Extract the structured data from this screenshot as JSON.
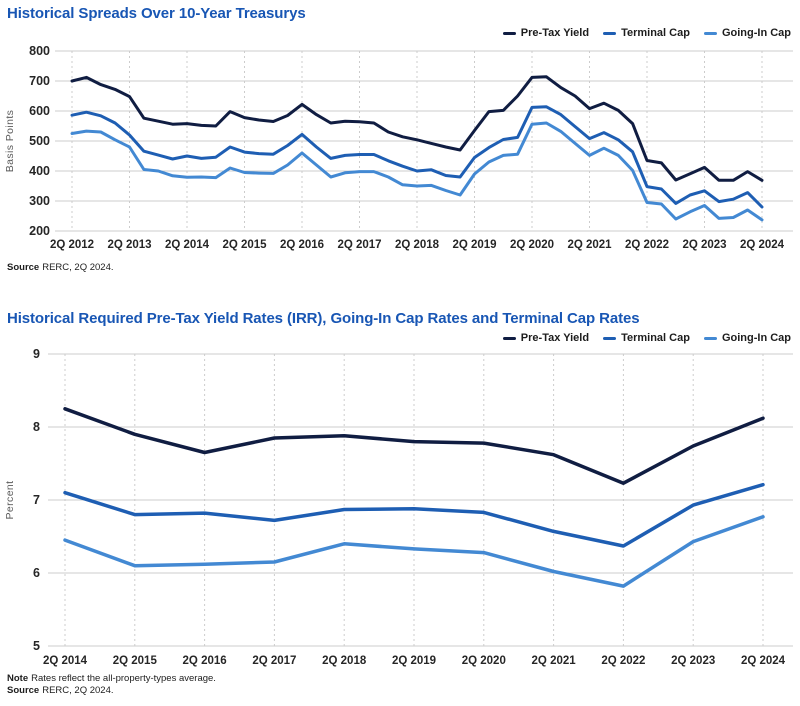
{
  "colors": {
    "title": "#1856b4",
    "grid": "#cccccc",
    "pre_tax": "#101d42",
    "terminal": "#1e5eb3",
    "going_in": "#4389d3"
  },
  "spreads_section": {
    "source_label": "Source",
    "source_text": "RERC, 2Q 2024."
  },
  "rates_section": {
    "note_label": "Note",
    "note_text": "Rates reflect the all-property-types average.",
    "source_label": "Source",
    "source_text": "RERC, 2Q 2024."
  },
  "chart_data": [
    {
      "type": "line",
      "title": "Historical Spreads Over 10-Year Treasurys",
      "xlabel": "",
      "ylabel": "Basis Points",
      "ylim": [
        200,
        800
      ],
      "yticks": [
        800,
        700,
        600,
        500,
        400,
        300,
        200
      ],
      "grid": true,
      "legend_position": "top-right",
      "xtick_every": 4,
      "x": [
        "2Q 2012",
        "3Q 2012",
        "4Q 2012",
        "1Q 2013",
        "2Q 2013",
        "3Q 2013",
        "4Q 2013",
        "1Q 2014",
        "2Q 2014",
        "3Q 2014",
        "4Q 2014",
        "1Q 2015",
        "2Q 2015",
        "3Q 2015",
        "4Q 2015",
        "1Q 2016",
        "2Q 2016",
        "3Q 2016",
        "4Q 2016",
        "1Q 2017",
        "2Q 2017",
        "3Q 2017",
        "4Q 2017",
        "1Q 2018",
        "2Q 2018",
        "3Q 2018",
        "4Q 2018",
        "1Q 2019",
        "2Q 2019",
        "3Q 2019",
        "4Q 2019",
        "1Q 2020",
        "2Q 2020",
        "3Q 2020",
        "4Q 2020",
        "1Q 2021",
        "2Q 2021",
        "3Q 2021",
        "4Q 2021",
        "1Q 2022",
        "2Q 2022",
        "3Q 2022",
        "4Q 2022",
        "1Q 2023",
        "2Q 2023",
        "3Q 2023",
        "4Q 2023",
        "1Q 2024",
        "2Q 2024"
      ],
      "series": [
        {
          "name": "Pre-Tax Yield",
          "color": "#101d42",
          "values": [
            700,
            712,
            688,
            672,
            648,
            576,
            566,
            556,
            558,
            552,
            550,
            598,
            578,
            570,
            565,
            585,
            622,
            588,
            560,
            566,
            564,
            560,
            530,
            514,
            504,
            492,
            480,
            470,
            535,
            598,
            602,
            650,
            712,
            714,
            678,
            650,
            608,
            626,
            602,
            558,
            435,
            427,
            370,
            391,
            412,
            369,
            369,
            398,
            369
          ]
        },
        {
          "name": "Terminal Cap",
          "color": "#1e5eb3",
          "values": [
            586,
            596,
            584,
            560,
            520,
            466,
            453,
            440,
            450,
            442,
            446,
            480,
            463,
            458,
            456,
            485,
            522,
            480,
            442,
            452,
            455,
            455,
            434,
            416,
            400,
            404,
            385,
            380,
            445,
            478,
            505,
            512,
            612,
            614,
            588,
            548,
            508,
            528,
            504,
            464,
            348,
            340,
            292,
            320,
            334,
            298,
            306,
            328,
            280
          ]
        },
        {
          "name": "Going-In Cap",
          "color": "#4389d3",
          "values": [
            525,
            533,
            530,
            504,
            480,
            405,
            400,
            384,
            379,
            380,
            378,
            410,
            395,
            393,
            392,
            420,
            460,
            420,
            380,
            394,
            398,
            398,
            380,
            354,
            350,
            352,
            335,
            320,
            390,
            430,
            452,
            456,
            556,
            560,
            532,
            492,
            452,
            476,
            452,
            402,
            295,
            290,
            240,
            264,
            285,
            242,
            245,
            270,
            237
          ]
        }
      ]
    },
    {
      "type": "line",
      "title": "Historical Required Pre-Tax Yield Rates (IRR), Going-In Cap Rates and Terminal Cap Rates",
      "xlabel": "",
      "ylabel": "Percent",
      "ylim": [
        5,
        9
      ],
      "yticks": [
        9,
        8,
        7,
        6,
        5
      ],
      "grid": true,
      "legend_position": "top-right",
      "xtick_every": 1,
      "x": [
        "2Q 2014",
        "2Q 2015",
        "2Q 2016",
        "2Q 2017",
        "2Q 2018",
        "2Q 2019",
        "2Q 2020",
        "2Q 2021",
        "2Q 2022",
        "2Q 2023",
        "2Q 2024"
      ],
      "series": [
        {
          "name": "Pre-Tax Yield",
          "color": "#101d42",
          "values": [
            8.25,
            7.9,
            7.65,
            7.85,
            7.88,
            7.8,
            7.78,
            7.62,
            7.23,
            7.74,
            8.12
          ]
        },
        {
          "name": "Terminal Cap",
          "color": "#1e5eb3",
          "values": [
            7.1,
            6.8,
            6.82,
            6.72,
            6.87,
            6.88,
            6.83,
            6.57,
            6.37,
            6.93,
            7.21
          ]
        },
        {
          "name": "Going-In Cap",
          "color": "#4389d3",
          "values": [
            6.45,
            6.1,
            6.12,
            6.15,
            6.4,
            6.33,
            6.28,
            6.02,
            5.82,
            6.43,
            6.77
          ]
        }
      ]
    }
  ]
}
